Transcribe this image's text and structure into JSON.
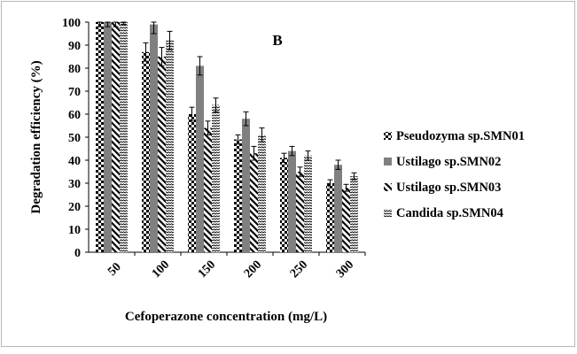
{
  "chart_data": {
    "type": "bar",
    "title": "B",
    "xlabel": "Cefoperazone concentration (mg/L)",
    "ylabel": "Degradation efficiency (%)",
    "ylim": [
      0,
      100
    ],
    "yticks": [
      0,
      10,
      20,
      30,
      40,
      50,
      60,
      70,
      80,
      90,
      100
    ],
    "categories": [
      "50",
      "100",
      "150",
      "200",
      "250",
      "300"
    ],
    "legend_position": "right",
    "series": [
      {
        "name": "Pseudozyma sp.SMN01",
        "pattern": "checker",
        "color": "#000000",
        "values": [
          100,
          87,
          60,
          49,
          41,
          30
        ],
        "errors": [
          2,
          4,
          3,
          2,
          2,
          1.5
        ]
      },
      {
        "name": "Ustilago sp.SMN02",
        "pattern": "solid",
        "color": "#808080",
        "values": [
          100,
          99,
          81,
          58,
          44,
          38
        ],
        "errors": [
          2,
          4,
          4,
          3,
          2,
          2
        ]
      },
      {
        "name": "Ustilago sp.SMN03",
        "pattern": "diagonal",
        "color": "#000000",
        "values": [
          100,
          85,
          54,
          43,
          35,
          28
        ],
        "errors": [
          2,
          4,
          3,
          3,
          2,
          1.5
        ]
      },
      {
        "name": "Candida sp.SMN04",
        "pattern": "wave",
        "color": "#000000",
        "values": [
          100,
          92,
          64,
          51,
          42,
          33
        ],
        "errors": [
          1,
          4,
          3,
          3,
          2,
          1.5
        ]
      }
    ]
  }
}
